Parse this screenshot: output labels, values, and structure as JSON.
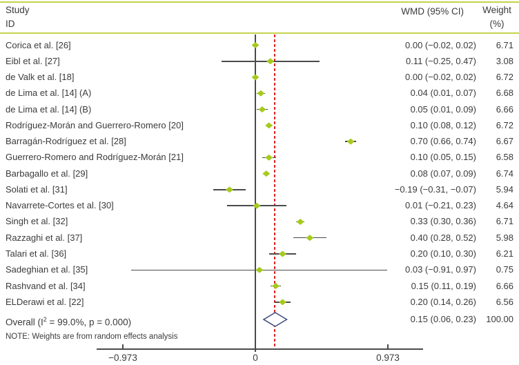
{
  "header": {
    "study_line1": "Study",
    "study_line2": "ID",
    "wmd": "WMD (95% CI)",
    "weight_line1": "Weight",
    "weight_line2": "(%)"
  },
  "note": "NOTE: Weights are from random effects analysis",
  "axis": {
    "tick_labels": [
      "−0.973",
      "0",
      "0.973"
    ],
    "tick_values": [
      -0.973,
      0,
      0.973
    ]
  },
  "colors": {
    "accent_green": "#c5d34a",
    "marker_green": "#a6ca1d",
    "line_gray": "#4a4a4a",
    "ref_line_red": "#e01f1f",
    "diamond_navy": "#3e4b7d",
    "text": "#3a3a3a"
  },
  "chart_data": {
    "type": "forest",
    "effect_measure": "WMD (95% CI)",
    "null_line_x": 0,
    "overall_ref_line_x": 0.15,
    "x_ticks": [
      -0.973,
      0,
      0.973
    ],
    "studies": [
      {
        "label": "Corica et al. [26]",
        "wmd": 0.0,
        "lo": -0.02,
        "hi": 0.02,
        "weight": 6.71,
        "wmd_text": "0.00 (−0.02, 0.02)",
        "weight_text": "6.71"
      },
      {
        "label": "Eibl et al. [27]",
        "wmd": 0.11,
        "lo": -0.25,
        "hi": 0.47,
        "weight": 3.08,
        "wmd_text": "0.11 (−0.25, 0.47)",
        "weight_text": "3.08"
      },
      {
        "label": "de Valk et al. [18]",
        "wmd": 0.0,
        "lo": -0.02,
        "hi": 0.02,
        "weight": 6.72,
        "wmd_text": "0.00 (−0.02, 0.02)",
        "weight_text": "6.72"
      },
      {
        "label": "de Lima et al. [14] (A)",
        "wmd": 0.04,
        "lo": 0.01,
        "hi": 0.07,
        "weight": 6.68,
        "wmd_text": "0.04 (0.01, 0.07)",
        "weight_text": "6.68"
      },
      {
        "label": "de Lima et al. [14] (B)",
        "wmd": 0.05,
        "lo": 0.01,
        "hi": 0.09,
        "weight": 6.66,
        "wmd_text": "0.05 (0.01, 0.09)",
        "weight_text": "6.66"
      },
      {
        "label": "Rodríguez-Morán and Guerrero-Romero [20]",
        "wmd": 0.1,
        "lo": 0.08,
        "hi": 0.12,
        "weight": 6.72,
        "wmd_text": "0.10 (0.08, 0.12)",
        "weight_text": "6.72"
      },
      {
        "label": "Barragán-Rodríguez et al. [28]",
        "wmd": 0.7,
        "lo": 0.66,
        "hi": 0.74,
        "weight": 6.67,
        "wmd_text": "0.70 (0.66, 0.74)",
        "weight_text": "6.67"
      },
      {
        "label": "Guerrero-Romero and Rodríguez-Morán [21]",
        "wmd": 0.1,
        "lo": 0.05,
        "hi": 0.15,
        "weight": 6.58,
        "wmd_text": "0.10 (0.05, 0.15)",
        "weight_text": "6.58"
      },
      {
        "label": "Barbagallo et al. [29]",
        "wmd": 0.08,
        "lo": 0.07,
        "hi": 0.09,
        "weight": 6.74,
        "wmd_text": "0.08 (0.07, 0.09)",
        "weight_text": "6.74"
      },
      {
        "label": "Solati et al. [31]",
        "wmd": -0.19,
        "lo": -0.31,
        "hi": -0.07,
        "weight": 5.94,
        "wmd_text": "−0.19 (−0.31, −0.07)",
        "weight_text": "5.94"
      },
      {
        "label": "Navarrete-Cortes et al. [30]",
        "wmd": 0.01,
        "lo": -0.21,
        "hi": 0.23,
        "weight": 4.64,
        "wmd_text": "0.01 (−0.21, 0.23)",
        "weight_text": "4.64"
      },
      {
        "label": "Singh et al. [32]",
        "wmd": 0.33,
        "lo": 0.3,
        "hi": 0.36,
        "weight": 6.71,
        "wmd_text": "0.33 (0.30, 0.36)",
        "weight_text": "6.71"
      },
      {
        "label": "Razzaghi et al. [37]",
        "wmd": 0.4,
        "lo": 0.28,
        "hi": 0.52,
        "weight": 5.98,
        "wmd_text": "0.40 (0.28, 0.52)",
        "weight_text": "5.98"
      },
      {
        "label": "Talari et al. [36]",
        "wmd": 0.2,
        "lo": 0.1,
        "hi": 0.3,
        "weight": 6.21,
        "wmd_text": "0.20 (0.10, 0.30)",
        "weight_text": "6.21"
      },
      {
        "label": "Sadeghian et al. [35]",
        "wmd": 0.03,
        "lo": -0.91,
        "hi": 0.97,
        "weight": 0.75,
        "wmd_text": "0.03 (−0.91, 0.97)",
        "weight_text": "0.75"
      },
      {
        "label": "Rashvand et al. [34]",
        "wmd": 0.15,
        "lo": 0.11,
        "hi": 0.19,
        "weight": 6.66,
        "wmd_text": "0.15 (0.11, 0.19)",
        "weight_text": "6.66"
      },
      {
        "label": "ELDerawi et al. [22]",
        "wmd": 0.2,
        "lo": 0.14,
        "hi": 0.26,
        "weight": 6.56,
        "wmd_text": "0.20 (0.14, 0.26)",
        "weight_text": "6.56"
      }
    ],
    "overall": {
      "label_prefix": "Overall (I",
      "label_sup": "2",
      "label_suffix": " = 99.0%, p = 0.000)",
      "wmd": 0.15,
      "lo": 0.06,
      "hi": 0.23,
      "wmd_text": "0.15 (0.06, 0.23)",
      "weight_text": "100.00"
    }
  }
}
